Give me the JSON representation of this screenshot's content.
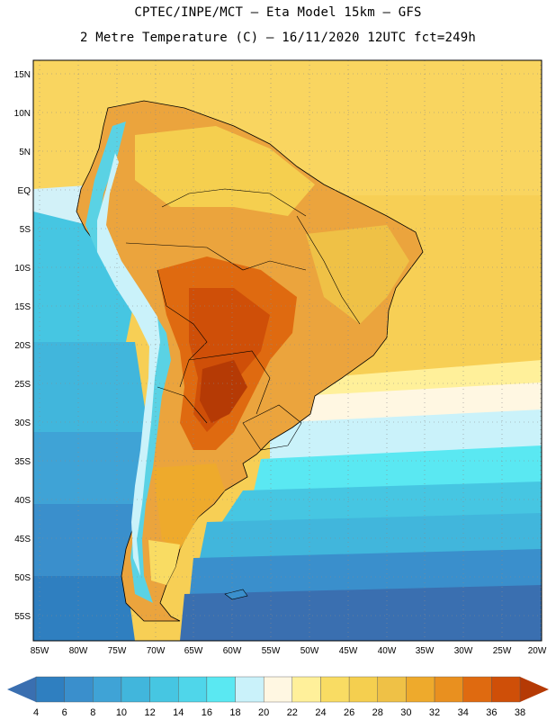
{
  "header": {
    "line1": "CPTEC/INPE/MCT –  Eta Model 15km – GFS",
    "line2": "2 Metre Temperature (C) – 16/11/2020 12UTC fct=249h"
  },
  "map": {
    "lat_labels": [
      "15N",
      "10N",
      "5N",
      "EQ",
      "5S",
      "10S",
      "15S",
      "20S",
      "25S",
      "30S",
      "35S",
      "40S",
      "45S",
      "50S",
      "55S"
    ],
    "lon_labels": [
      "85W",
      "80W",
      "75W",
      "70W",
      "65W",
      "60W",
      "55W",
      "50W",
      "45W",
      "40W",
      "35W",
      "30W",
      "25W",
      "20W"
    ],
    "grid": "dotted"
  },
  "colorbar": {
    "labels": [
      "4",
      "6",
      "8",
      "10",
      "12",
      "14",
      "16",
      "18",
      "20",
      "22",
      "24",
      "26",
      "28",
      "30",
      "32",
      "34",
      "36",
      "38"
    ],
    "colors": [
      "#3a6fb0",
      "#2f7fc0",
      "#3a8fcc",
      "#3fa3d6",
      "#41b6dc",
      "#46c6e2",
      "#4fd6ea",
      "#5ae8f2",
      "#caf2fa",
      "#fff7e2",
      "#fff09a",
      "#f9dc63",
      "#f5cf4f",
      "#efc146",
      "#eeaa2c",
      "#e9901f",
      "#df6a10",
      "#cf4f08",
      "#b53a05"
    ]
  }
}
